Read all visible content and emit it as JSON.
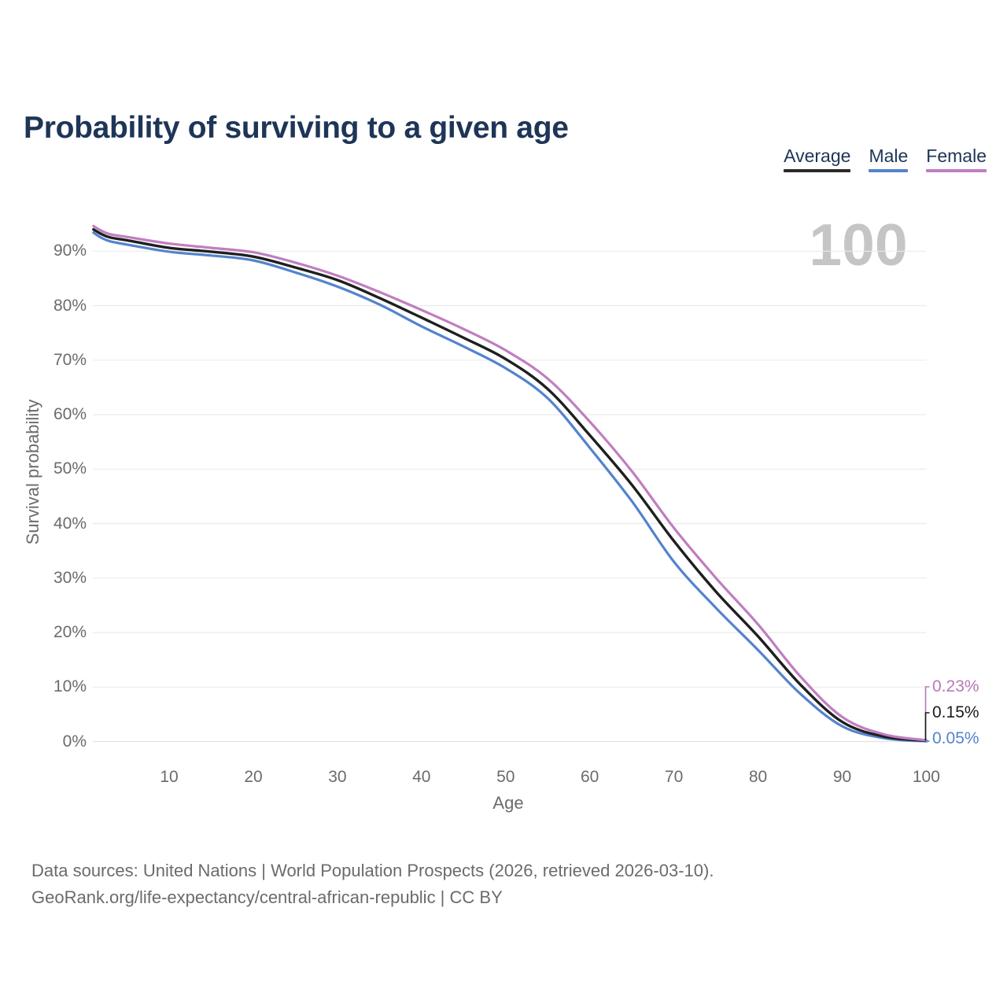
{
  "title": "Probability of surviving to a given age",
  "legend": [
    {
      "id": "average",
      "label": "Average",
      "color": "#2a2a2a"
    },
    {
      "id": "male",
      "label": "Male",
      "color": "#5483cd"
    },
    {
      "id": "female",
      "label": "Female",
      "color": "#c07ec0"
    }
  ],
  "chart_data": {
    "type": "line",
    "title": "Probability of surviving to a given age",
    "xlabel": "Age",
    "ylabel": "Survival probability",
    "xlim": [
      1,
      100
    ],
    "ylim_pct": [
      0,
      96
    ],
    "grid": "horizontal",
    "legend_position": "top-right",
    "x_ticks": [
      10,
      20,
      30,
      40,
      50,
      60,
      70,
      80,
      90,
      100
    ],
    "y_tick_labels": [
      "0%",
      "10%",
      "20%",
      "30%",
      "40%",
      "50%",
      "60%",
      "70%",
      "80%",
      "90%"
    ],
    "ages": [
      1,
      2,
      3,
      5,
      10,
      15,
      20,
      25,
      30,
      35,
      40,
      45,
      50,
      55,
      60,
      65,
      70,
      75,
      80,
      85,
      90,
      95,
      100
    ],
    "series": [
      {
        "name": "Average",
        "color": "#1f1f1f",
        "values": [
          94.0,
          93.1,
          92.5,
          92.0,
          90.6,
          89.9,
          89.0,
          87.0,
          84.7,
          81.4,
          77.8,
          74.1,
          70.2,
          64.7,
          56.2,
          47.1,
          36.8,
          27.5,
          19.3,
          10.5,
          3.6,
          0.9,
          0.15
        ]
      },
      {
        "name": "Male",
        "color": "#5483cd",
        "values": [
          93.4,
          92.4,
          91.8,
          91.2,
          89.9,
          89.2,
          88.3,
          86.1,
          83.5,
          80.2,
          76.2,
          72.5,
          68.5,
          63.0,
          53.9,
          44.1,
          33.0,
          24.5,
          16.8,
          8.8,
          2.8,
          0.6,
          0.05
        ]
      },
      {
        "name": "Female",
        "color": "#c07ec0",
        "values": [
          94.6,
          93.7,
          93.1,
          92.6,
          91.4,
          90.6,
          89.8,
          87.9,
          85.5,
          82.5,
          79.2,
          75.7,
          71.8,
          66.6,
          58.7,
          49.6,
          39.2,
          30.0,
          21.5,
          12.0,
          4.5,
          1.3,
          0.23
        ]
      }
    ],
    "end_labels": [
      {
        "series": "Female",
        "value": "0.23%",
        "color": "#b878ba"
      },
      {
        "series": "Average",
        "value": "0.15%",
        "color": "#1c1c1c"
      },
      {
        "series": "Male",
        "value": "0.05%",
        "color": "#5483cd"
      }
    ],
    "hover_age_annotation": "100"
  },
  "footer": {
    "line1": "Data sources: United Nations | World Population Prospects (2026, retrieved 2026-03-10).",
    "line2": "GeoRank.org/life-expectancy/central-african-republic | CC BY"
  }
}
